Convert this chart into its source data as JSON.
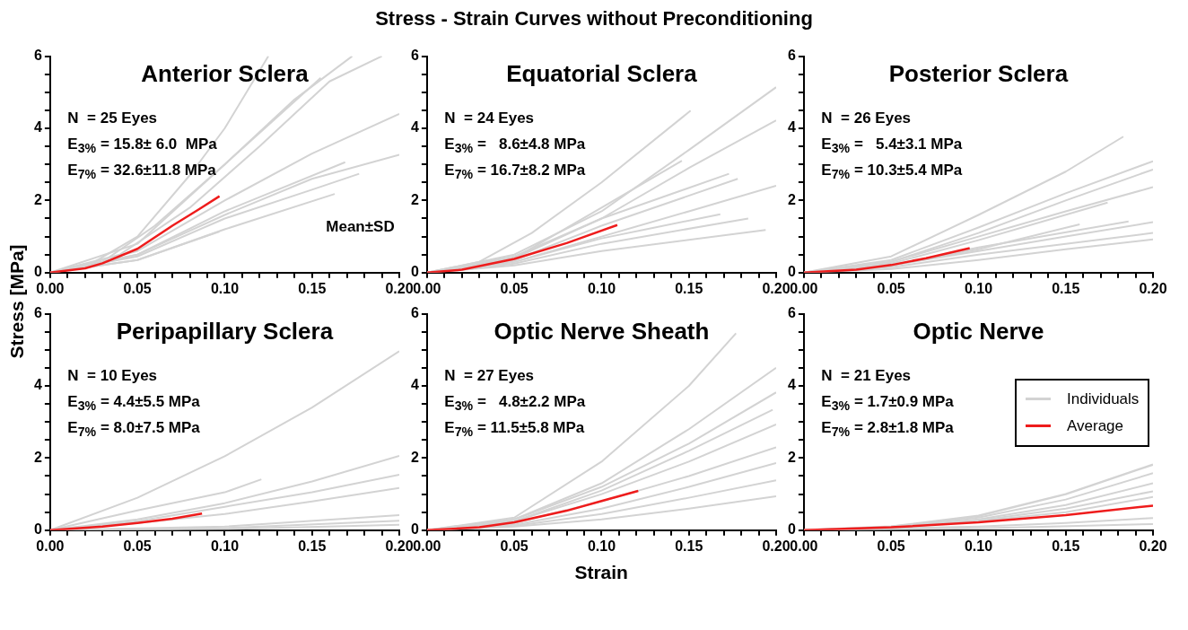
{
  "chart_data": [
    {
      "type": "line",
      "title": "Anterior Sclera",
      "ylabel": "Stress [MPa]",
      "xlim": [
        0,
        0.2
      ],
      "ylim": [
        0,
        6
      ],
      "xticks": [
        {
          "value": 0,
          "label": "0.00"
        },
        {
          "value": 0.01,
          "label": null
        },
        {
          "value": 0.02,
          "label": null
        },
        {
          "value": 0.03,
          "label": null
        },
        {
          "value": 0.04,
          "label": null
        },
        {
          "value": 0.05,
          "label": "0.05"
        },
        {
          "value": 0.06,
          "label": null
        },
        {
          "value": 0.07,
          "label": null
        },
        {
          "value": 0.08,
          "label": null
        },
        {
          "value": 0.09,
          "label": null
        },
        {
          "value": 0.1,
          "label": "0.10"
        },
        {
          "value": 0.11,
          "label": null
        },
        {
          "value": 0.12,
          "label": null
        },
        {
          "value": 0.13,
          "label": null
        },
        {
          "value": 0.14,
          "label": null
        },
        {
          "value": 0.15,
          "label": "0.15"
        },
        {
          "value": 0.16,
          "label": null
        },
        {
          "value": 0.17,
          "label": null
        },
        {
          "value": 0.18,
          "label": null
        },
        {
          "value": 0.19,
          "label": null
        },
        {
          "value": 0.2,
          "label": "0.20"
        }
      ],
      "yticks": [
        0,
        {
          "value": 0.5,
          "label": null
        },
        {
          "value": 1,
          "label": null
        },
        {
          "value": 1.5,
          "label": null
        },
        2,
        {
          "value": 2.5,
          "label": null
        },
        {
          "value": 3,
          "label": null
        },
        {
          "value": 3.5,
          "label": null
        },
        4,
        {
          "value": 4.5,
          "label": null
        },
        {
          "value": 5,
          "label": null
        },
        {
          "value": 5.5,
          "label": null
        },
        6
      ],
      "annotations": [
        "N  = 25 Eyes",
        "E$_{3%}$ = 15.8± 6.0  MPa",
        "E$_{7%}$ = 32.6±11.8 MPa",
        "Mean±SD",
        "Stress - Strain Curves without Preconditioning"
      ],
      "series": [
        {
          "color": "#d3d3d3",
          "x": [
            0,
            0.02,
            0.05,
            0.08,
            0.1,
            0.125
          ],
          "values": [
            0,
            0.15,
            1.0,
            2.7,
            4.0,
            6
          ]
        },
        {
          "color": "#d3d3d3",
          "x": [
            0,
            0.03,
            0.06,
            0.1,
            0.14,
            0.173
          ],
          "values": [
            0,
            0.3,
            1.3,
            3.0,
            4.8,
            6
          ]
        },
        {
          "color": "#d3d3d3",
          "x": [
            0,
            0.04,
            0.08,
            0.12,
            0.16,
            0.19
          ],
          "values": [
            0,
            0.5,
            1.8,
            3.5,
            5.3,
            6
          ]
        },
        {
          "color": "#d3d3d3",
          "x": [
            0,
            0.05,
            0.1,
            0.155
          ],
          "values": [
            0,
            0.8,
            3.0,
            5.4
          ]
        },
        {
          "color": "#d3d3d3",
          "x": [
            0,
            0.05,
            0.1,
            0.15,
            0.2
          ],
          "values": [
            0,
            0.6,
            2.0,
            3.3,
            4.4
          ]
        },
        {
          "color": "#d3d3d3",
          "x": [
            0,
            0.05,
            0.1,
            0.15,
            0.2
          ],
          "values": [
            0,
            0.5,
            1.6,
            2.6,
            3.27
          ]
        },
        {
          "color": "#d3d3d3",
          "x": [
            0,
            0.05,
            0.1,
            0.15,
            0.177
          ],
          "values": [
            0,
            0.45,
            1.5,
            2.3,
            2.74
          ]
        },
        {
          "color": "#d3d3d3",
          "x": [
            0,
            0.05,
            0.1,
            0.169
          ],
          "values": [
            0,
            0.5,
            1.7,
            3.06
          ]
        },
        {
          "color": "#d3d3d3",
          "x": [
            0,
            0.05,
            0.1,
            0.163
          ],
          "values": [
            0,
            0.35,
            1.2,
            2.18
          ]
        },
        {
          "color": "#d3d3d3",
          "x": [
            0,
            0.05,
            0.097
          ],
          "values": [
            0,
            0.35,
            1.14
          ]
        },
        {
          "color": "#ee1c1c",
          "x": [
            0,
            0.02,
            0.03,
            0.05,
            0.07,
            0.085,
            0.097
          ],
          "values": [
            0,
            0.12,
            0.26,
            0.66,
            1.3,
            1.75,
            2.12
          ]
        }
      ]
    },
    {
      "type": "line",
      "title": "Equatorial Sclera",
      "xlim": [
        0,
        0.2
      ],
      "ylim": [
        0,
        6
      ],
      "xticks": [
        {
          "value": 0,
          "label": "0.00"
        },
        {
          "value": 0.01,
          "label": null
        },
        {
          "value": 0.02,
          "label": null
        },
        {
          "value": 0.03,
          "label": null
        },
        {
          "value": 0.04,
          "label": null
        },
        {
          "value": 0.05,
          "label": "0.05"
        },
        {
          "value": 0.06,
          "label": null
        },
        {
          "value": 0.07,
          "label": null
        },
        {
          "value": 0.08,
          "label": null
        },
        {
          "value": 0.09,
          "label": null
        },
        {
          "value": 0.1,
          "label": "0.10"
        },
        {
          "value": 0.11,
          "label": null
        },
        {
          "value": 0.12,
          "label": null
        },
        {
          "value": 0.13,
          "label": null
        },
        {
          "value": 0.14,
          "label": null
        },
        {
          "value": 0.15,
          "label": "0.15"
        },
        {
          "value": 0.16,
          "label": null
        },
        {
          "value": 0.17,
          "label": null
        },
        {
          "value": 0.18,
          "label": null
        },
        {
          "value": 0.19,
          "label": null
        },
        {
          "value": 0.2,
          "label": "0.20"
        }
      ],
      "yticks": [
        0,
        {
          "value": 0.5,
          "label": null
        },
        {
          "value": 1,
          "label": null
        },
        {
          "value": 1.5,
          "label": null
        },
        2,
        {
          "value": 2.5,
          "label": null
        },
        {
          "value": 3,
          "label": null
        },
        {
          "value": 3.5,
          "label": null
        },
        4,
        {
          "value": 4.5,
          "label": null
        },
        {
          "value": 5,
          "label": null
        },
        {
          "value": 5.5,
          "label": null
        },
        6
      ],
      "annotations": [
        "N  = 24 Eyes",
        "E$_{3%}$ =   8.6±4.8 MPa",
        "E$_{7%}$ = 16.7±8.2 MPa"
      ],
      "series": [
        {
          "color": "#d3d3d3",
          "x": [
            0,
            0.03,
            0.06,
            0.1,
            0.151
          ],
          "values": [
            0,
            0.3,
            1.1,
            2.5,
            4.49
          ]
        },
        {
          "color": "#d3d3d3",
          "x": [
            0,
            0.05,
            0.1,
            0.15,
            0.2
          ],
          "values": [
            0,
            0.5,
            1.7,
            3.4,
            5.14
          ]
        },
        {
          "color": "#d3d3d3",
          "x": [
            0,
            0.05,
            0.1,
            0.15,
            0.2
          ],
          "values": [
            0,
            0.45,
            1.5,
            2.9,
            4.22
          ]
        },
        {
          "color": "#d3d3d3",
          "x": [
            0,
            0.05,
            0.1,
            0.146
          ],
          "values": [
            0,
            0.4,
            1.8,
            3.1
          ]
        },
        {
          "color": "#d3d3d3",
          "x": [
            0,
            0.05,
            0.1,
            0.173
          ],
          "values": [
            0,
            0.4,
            1.5,
            2.74
          ]
        },
        {
          "color": "#d3d3d3",
          "x": [
            0,
            0.05,
            0.1,
            0.178
          ],
          "values": [
            0,
            0.35,
            1.3,
            2.6
          ]
        },
        {
          "color": "#d3d3d3",
          "x": [
            0,
            0.05,
            0.1,
            0.15,
            0.2
          ],
          "values": [
            0,
            0.3,
            1.0,
            1.7,
            2.41
          ]
        },
        {
          "color": "#d3d3d3",
          "x": [
            0,
            0.05,
            0.1,
            0.168
          ],
          "values": [
            0,
            0.3,
            0.95,
            1.62
          ]
        },
        {
          "color": "#d3d3d3",
          "x": [
            0,
            0.05,
            0.1,
            0.184
          ],
          "values": [
            0,
            0.25,
            0.8,
            1.5
          ]
        },
        {
          "color": "#d3d3d3",
          "x": [
            0,
            0.05,
            0.1,
            0.194
          ],
          "values": [
            0,
            0.2,
            0.6,
            1.18
          ]
        },
        {
          "color": "#ee1c1c",
          "x": [
            0,
            0.02,
            0.05,
            0.08,
            0.109
          ],
          "values": [
            0,
            0.08,
            0.38,
            0.82,
            1.32
          ]
        }
      ]
    },
    {
      "type": "line",
      "title": "Posterior Sclera",
      "xlim": [
        0,
        0.2
      ],
      "ylim": [
        0,
        6
      ],
      "xticks": [
        {
          "value": 0,
          "label": "0.00"
        },
        {
          "value": 0.01,
          "label": null
        },
        {
          "value": 0.02,
          "label": null
        },
        {
          "value": 0.03,
          "label": null
        },
        {
          "value": 0.04,
          "label": null
        },
        {
          "value": 0.05,
          "label": "0.05"
        },
        {
          "value": 0.06,
          "label": null
        },
        {
          "value": 0.07,
          "label": null
        },
        {
          "value": 0.08,
          "label": null
        },
        {
          "value": 0.09,
          "label": null
        },
        {
          "value": 0.1,
          "label": "0.10"
        },
        {
          "value": 0.11,
          "label": null
        },
        {
          "value": 0.12,
          "label": null
        },
        {
          "value": 0.13,
          "label": null
        },
        {
          "value": 0.14,
          "label": null
        },
        {
          "value": 0.15,
          "label": "0.15"
        },
        {
          "value": 0.16,
          "label": null
        },
        {
          "value": 0.17,
          "label": null
        },
        {
          "value": 0.18,
          "label": null
        },
        {
          "value": 0.19,
          "label": null
        },
        {
          "value": 0.2,
          "label": "0.20"
        }
      ],
      "yticks": [
        0,
        {
          "value": 0.5,
          "label": null
        },
        {
          "value": 1,
          "label": null
        },
        {
          "value": 1.5,
          "label": null
        },
        2,
        {
          "value": 2.5,
          "label": null
        },
        {
          "value": 3,
          "label": null
        },
        {
          "value": 3.5,
          "label": null
        },
        4,
        {
          "value": 4.5,
          "label": null
        },
        {
          "value": 5,
          "label": null
        },
        {
          "value": 5.5,
          "label": null
        },
        6
      ],
      "annotations": [
        "N  = 26 Eyes",
        "E$_{3%}$ =   5.4±3.1 MPa",
        "E$_{7%}$ = 10.3±5.4 MPa"
      ],
      "series": [
        {
          "color": "#d3d3d3",
          "x": [
            0,
            0.05,
            0.1,
            0.15,
            0.183
          ],
          "values": [
            0,
            0.45,
            1.6,
            2.8,
            3.77
          ]
        },
        {
          "color": "#d3d3d3",
          "x": [
            0,
            0.05,
            0.1,
            0.15,
            0.2
          ],
          "values": [
            0,
            0.35,
            1.25,
            2.2,
            3.09
          ]
        },
        {
          "color": "#d3d3d3",
          "x": [
            0,
            0.05,
            0.1,
            0.15,
            0.2
          ],
          "values": [
            0,
            0.3,
            1.1,
            2.0,
            2.86
          ]
        },
        {
          "color": "#d3d3d3",
          "x": [
            0,
            0.05,
            0.1,
            0.15,
            0.2
          ],
          "values": [
            0,
            0.3,
            1.0,
            1.7,
            2.37
          ]
        },
        {
          "color": "#d3d3d3",
          "x": [
            0,
            0.05,
            0.1,
            0.174
          ],
          "values": [
            0,
            0.25,
            0.9,
            1.94
          ]
        },
        {
          "color": "#d3d3d3",
          "x": [
            0,
            0.05,
            0.1,
            0.186
          ],
          "values": [
            0,
            0.2,
            0.7,
            1.42
          ]
        },
        {
          "color": "#d3d3d3",
          "x": [
            0,
            0.05,
            0.1,
            0.158
          ],
          "values": [
            0,
            0.2,
            0.65,
            1.34
          ]
        },
        {
          "color": "#d3d3d3",
          "x": [
            0,
            0.05,
            0.1,
            0.15,
            0.2
          ],
          "values": [
            0,
            0.2,
            0.6,
            1.0,
            1.4
          ]
        },
        {
          "color": "#d3d3d3",
          "x": [
            0,
            0.05,
            0.1,
            0.15,
            0.2
          ],
          "values": [
            0,
            0.15,
            0.5,
            0.8,
            1.1
          ]
        },
        {
          "color": "#d3d3d3",
          "x": [
            0,
            0.05,
            0.1,
            0.15,
            0.2
          ],
          "values": [
            0,
            0.1,
            0.35,
            0.65,
            0.92
          ]
        },
        {
          "color": "#ee1c1c",
          "x": [
            0,
            0.03,
            0.05,
            0.07,
            0.095
          ],
          "values": [
            0,
            0.08,
            0.21,
            0.4,
            0.68
          ]
        }
      ]
    },
    {
      "type": "line",
      "title": "Peripapillary Sclera",
      "xlim": [
        0,
        0.2
      ],
      "ylim": [
        0,
        6
      ],
      "xticks": [
        {
          "value": 0,
          "label": "0.00"
        },
        {
          "value": 0.01,
          "label": null
        },
        {
          "value": 0.02,
          "label": null
        },
        {
          "value": 0.03,
          "label": null
        },
        {
          "value": 0.04,
          "label": null
        },
        {
          "value": 0.05,
          "label": "0.05"
        },
        {
          "value": 0.06,
          "label": null
        },
        {
          "value": 0.07,
          "label": null
        },
        {
          "value": 0.08,
          "label": null
        },
        {
          "value": 0.09,
          "label": null
        },
        {
          "value": 0.1,
          "label": "0.10"
        },
        {
          "value": 0.11,
          "label": null
        },
        {
          "value": 0.12,
          "label": null
        },
        {
          "value": 0.13,
          "label": null
        },
        {
          "value": 0.14,
          "label": null
        },
        {
          "value": 0.15,
          "label": "0.15"
        },
        {
          "value": 0.16,
          "label": null
        },
        {
          "value": 0.17,
          "label": null
        },
        {
          "value": 0.18,
          "label": null
        },
        {
          "value": 0.19,
          "label": null
        },
        {
          "value": 0.2,
          "label": "0.20"
        }
      ],
      "yticks": [
        0,
        {
          "value": 0.5,
          "label": null
        },
        {
          "value": 1,
          "label": null
        },
        {
          "value": 1.5,
          "label": null
        },
        2,
        {
          "value": 2.5,
          "label": null
        },
        {
          "value": 3,
          "label": null
        },
        {
          "value": 3.5,
          "label": null
        },
        4,
        {
          "value": 4.5,
          "label": null
        },
        {
          "value": 5,
          "label": null
        },
        {
          "value": 5.5,
          "label": null
        },
        6
      ],
      "annotations": [
        "N  = 10 Eyes",
        "E$_{3%}$ = 4.4±5.5 MPa",
        "E$_{7%}$ = 8.0±7.5 MPa"
      ],
      "series": [
        {
          "color": "#d3d3d3",
          "x": [
            0,
            0.05,
            0.1,
            0.15,
            0.2
          ],
          "values": [
            0,
            0.9,
            2.05,
            3.4,
            4.96
          ]
        },
        {
          "color": "#d3d3d3",
          "x": [
            0,
            0.05,
            0.1,
            0.121
          ],
          "values": [
            0,
            0.55,
            1.05,
            1.41
          ]
        },
        {
          "color": "#d3d3d3",
          "x": [
            0,
            0.05,
            0.1,
            0.15,
            0.2
          ],
          "values": [
            0,
            0.3,
            0.75,
            1.35,
            2.06
          ]
        },
        {
          "color": "#d3d3d3",
          "x": [
            0,
            0.05,
            0.1,
            0.15,
            0.2
          ],
          "values": [
            0,
            0.25,
            0.65,
            1.05,
            1.54
          ]
        },
        {
          "color": "#d3d3d3",
          "x": [
            0,
            0.05,
            0.1,
            0.15,
            0.2
          ],
          "values": [
            0,
            0.2,
            0.45,
            0.8,
            1.17
          ]
        },
        {
          "color": "#d3d3d3",
          "x": [
            0,
            0.1,
            0.2
          ],
          "values": [
            0,
            0.1,
            0.42
          ]
        },
        {
          "color": "#d3d3d3",
          "x": [
            0,
            0.1,
            0.2
          ],
          "values": [
            0,
            0.06,
            0.26
          ]
        },
        {
          "color": "#d3d3d3",
          "x": [
            0,
            0.1,
            0.2
          ],
          "values": [
            0,
            0.03,
            0.15
          ]
        },
        {
          "color": "#ee1c1c",
          "x": [
            0,
            0.03,
            0.05,
            0.07,
            0.087
          ],
          "values": [
            0,
            0.1,
            0.2,
            0.32,
            0.46
          ]
        }
      ]
    },
    {
      "type": "line",
      "title": "Optic Nerve Sheath",
      "xlabel": "Strain",
      "xlim": [
        0,
        0.2
      ],
      "ylim": [
        0,
        6
      ],
      "xticks": [
        {
          "value": 0,
          "label": "0.00"
        },
        {
          "value": 0.01,
          "label": null
        },
        {
          "value": 0.02,
          "label": null
        },
        {
          "value": 0.03,
          "label": null
        },
        {
          "value": 0.04,
          "label": null
        },
        {
          "value": 0.05,
          "label": "0.05"
        },
        {
          "value": 0.06,
          "label": null
        },
        {
          "value": 0.07,
          "label": null
        },
        {
          "value": 0.08,
          "label": null
        },
        {
          "value": 0.09,
          "label": null
        },
        {
          "value": 0.1,
          "label": "0.10"
        },
        {
          "value": 0.11,
          "label": null
        },
        {
          "value": 0.12,
          "label": null
        },
        {
          "value": 0.13,
          "label": null
        },
        {
          "value": 0.14,
          "label": null
        },
        {
          "value": 0.15,
          "label": "0.15"
        },
        {
          "value": 0.16,
          "label": null
        },
        {
          "value": 0.17,
          "label": null
        },
        {
          "value": 0.18,
          "label": null
        },
        {
          "value": 0.19,
          "label": null
        },
        {
          "value": 0.2,
          "label": "0.20"
        }
      ],
      "yticks": [
        0,
        {
          "value": 0.5,
          "label": null
        },
        {
          "value": 1,
          "label": null
        },
        {
          "value": 1.5,
          "label": null
        },
        2,
        {
          "value": 2.5,
          "label": null
        },
        {
          "value": 3,
          "label": null
        },
        {
          "value": 3.5,
          "label": null
        },
        4,
        {
          "value": 4.5,
          "label": null
        },
        {
          "value": 5,
          "label": null
        },
        {
          "value": 5.5,
          "label": null
        },
        6
      ],
      "annotations": [
        "N  = 27 Eyes",
        "E$_{3%}$ =   4.8±2.2 MPa",
        "E$_{7%}$ = 11.5±5.8 MPa"
      ],
      "series": [
        {
          "color": "#d3d3d3",
          "x": [
            0,
            0.05,
            0.1,
            0.15,
            0.177
          ],
          "values": [
            0,
            0.35,
            1.9,
            4.0,
            5.46
          ]
        },
        {
          "color": "#d3d3d3",
          "x": [
            0,
            0.05,
            0.1,
            0.15,
            0.2
          ],
          "values": [
            0,
            0.3,
            1.3,
            2.8,
            4.5
          ]
        },
        {
          "color": "#d3d3d3",
          "x": [
            0,
            0.05,
            0.1,
            0.15,
            0.2
          ],
          "values": [
            0,
            0.3,
            1.2,
            2.4,
            3.82
          ]
        },
        {
          "color": "#d3d3d3",
          "x": [
            0,
            0.05,
            0.1,
            0.15,
            0.198
          ],
          "values": [
            0,
            0.25,
            1.1,
            2.2,
            3.34
          ]
        },
        {
          "color": "#d3d3d3",
          "x": [
            0,
            0.05,
            0.1,
            0.15,
            0.2
          ],
          "values": [
            0,
            0.25,
            1.0,
            1.9,
            2.93
          ]
        },
        {
          "color": "#d3d3d3",
          "x": [
            0,
            0.05,
            0.1,
            0.15,
            0.2
          ],
          "values": [
            0,
            0.2,
            0.8,
            1.5,
            2.3
          ]
        },
        {
          "color": "#d3d3d3",
          "x": [
            0,
            0.05,
            0.1,
            0.15,
            0.2
          ],
          "values": [
            0,
            0.15,
            0.6,
            1.2,
            1.86
          ]
        },
        {
          "color": "#d3d3d3",
          "x": [
            0,
            0.05,
            0.1,
            0.15,
            0.2
          ],
          "values": [
            0,
            0.12,
            0.45,
            0.9,
            1.38
          ]
        },
        {
          "color": "#d3d3d3",
          "x": [
            0,
            0.05,
            0.1,
            0.15,
            0.2
          ],
          "values": [
            0,
            0.1,
            0.3,
            0.6,
            0.94
          ]
        },
        {
          "color": "#ee1c1c",
          "x": [
            0,
            0.03,
            0.05,
            0.08,
            0.1,
            0.121
          ],
          "values": [
            0,
            0.08,
            0.22,
            0.54,
            0.81,
            1.09
          ]
        }
      ]
    },
    {
      "type": "line",
      "title": "Optic Nerve",
      "legend": "right",
      "xlim": [
        0,
        0.2
      ],
      "ylim": [
        0,
        6
      ],
      "xticks": [
        {
          "value": 0,
          "label": "0.00"
        },
        {
          "value": 0.01,
          "label": null
        },
        {
          "value": 0.02,
          "label": null
        },
        {
          "value": 0.03,
          "label": null
        },
        {
          "value": 0.04,
          "label": null
        },
        {
          "value": 0.05,
          "label": "0.05"
        },
        {
          "value": 0.06,
          "label": null
        },
        {
          "value": 0.07,
          "label": null
        },
        {
          "value": 0.08,
          "label": null
        },
        {
          "value": 0.09,
          "label": null
        },
        {
          "value": 0.1,
          "label": "0.10"
        },
        {
          "value": 0.11,
          "label": null
        },
        {
          "value": 0.12,
          "label": null
        },
        {
          "value": 0.13,
          "label": null
        },
        {
          "value": 0.14,
          "label": null
        },
        {
          "value": 0.15,
          "label": "0.15"
        },
        {
          "value": 0.16,
          "label": null
        },
        {
          "value": 0.17,
          "label": null
        },
        {
          "value": 0.18,
          "label": null
        },
        {
          "value": 0.19,
          "label": null
        },
        {
          "value": 0.2,
          "label": "0.20"
        }
      ],
      "yticks": [
        0,
        {
          "value": 0.5,
          "label": null
        },
        {
          "value": 1,
          "label": null
        },
        {
          "value": 1.5,
          "label": null
        },
        2,
        {
          "value": 2.5,
          "label": null
        },
        {
          "value": 3,
          "label": null
        },
        {
          "value": 3.5,
          "label": null
        },
        4,
        {
          "value": 4.5,
          "label": null
        },
        {
          "value": 5,
          "label": null
        },
        {
          "value": 5.5,
          "label": null
        },
        6
      ],
      "annotations": [
        "N  = 21 Eyes",
        "E$_{3%}$ = 1.7±0.9 MPa",
        "E$_{7%}$ = 2.8±1.8 MPa"
      ],
      "series": [
        {
          "name": "Individuals",
          "color": "#d3d3d3",
          "x": [
            0,
            0.05,
            0.1,
            0.15,
            0.2
          ],
          "values": [
            0,
            0.1,
            0.4,
            1.0,
            1.82
          ]
        },
        {
          "color": "#d3d3d3",
          "x": [
            0,
            0.05,
            0.1,
            0.15,
            0.2
          ],
          "values": [
            0,
            0.1,
            0.35,
            0.85,
            1.58
          ]
        },
        {
          "color": "#d3d3d3",
          "x": [
            0,
            0.05,
            0.1,
            0.15,
            0.2
          ],
          "values": [
            0,
            0.08,
            0.3,
            0.7,
            1.3
          ]
        },
        {
          "color": "#d3d3d3",
          "x": [
            0,
            0.05,
            0.1,
            0.15,
            0.2
          ],
          "values": [
            0,
            0.07,
            0.27,
            0.6,
            1.08
          ]
        },
        {
          "color": "#d3d3d3",
          "x": [
            0,
            0.05,
            0.1,
            0.15,
            0.2
          ],
          "values": [
            0,
            0.06,
            0.25,
            0.5,
            0.92
          ]
        },
        {
          "color": "#d3d3d3",
          "x": [
            0,
            0.1,
            0.15,
            0.2
          ],
          "values": [
            0,
            0.1,
            0.2,
            0.34
          ]
        },
        {
          "color": "#d3d3d3",
          "x": [
            0,
            0.1,
            0.2
          ],
          "values": [
            0,
            0.05,
            0.17
          ]
        },
        {
          "name": "Average",
          "color": "#ee1c1c",
          "x": [
            0,
            0.05,
            0.1,
            0.15,
            0.2
          ],
          "values": [
            0,
            0.08,
            0.22,
            0.42,
            0.68
          ]
        }
      ]
    }
  ]
}
